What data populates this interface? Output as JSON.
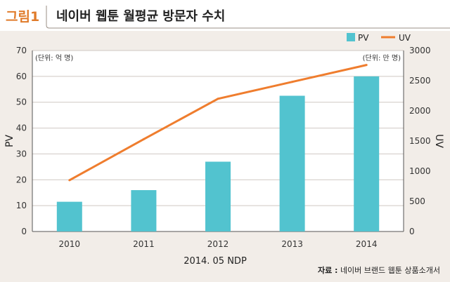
{
  "header": {
    "fig_label": "그림1",
    "title": "네이버 웹툰 월평균 방문자 수치"
  },
  "source": {
    "label": "자료 :",
    "text": "네이버 브랜드 웹툰 상품소개서"
  },
  "colors": {
    "pv_bar": "#52c3cf",
    "uv_line": "#ef7d2e",
    "accent": "#e07b2a",
    "panel_bg": "#f2ede8"
  },
  "chart_data": {
    "type": "bar",
    "title": "네이버 웹툰 월평균 방문자 수치",
    "categories": [
      "2010",
      "2011",
      "2012",
      "2013",
      "2014"
    ],
    "xlabel": "2014. 05 NDP",
    "y_left": {
      "label": "PV",
      "unit_note": "(단위: 억 명)",
      "range": [
        0,
        70
      ],
      "ticks": [
        "0",
        "10",
        "20",
        "30",
        "40",
        "50",
        "60",
        "70"
      ]
    },
    "y_right": {
      "label": "UV",
      "unit_note": "(단위: 만 명)",
      "range": [
        0,
        3000
      ],
      "ticks": [
        "0",
        "500",
        "1000",
        "1500",
        "2000",
        "2500",
        "3000"
      ]
    },
    "series": [
      {
        "name": "PV",
        "type": "bar",
        "axis": "left",
        "values": [
          11.5,
          16,
          27,
          52.5,
          60
        ]
      },
      {
        "name": "UV",
        "type": "line",
        "axis": "right",
        "values": [
          850,
          1530,
          2200,
          2480,
          2760
        ]
      }
    ],
    "legend_position": "top-right",
    "grid": true
  }
}
